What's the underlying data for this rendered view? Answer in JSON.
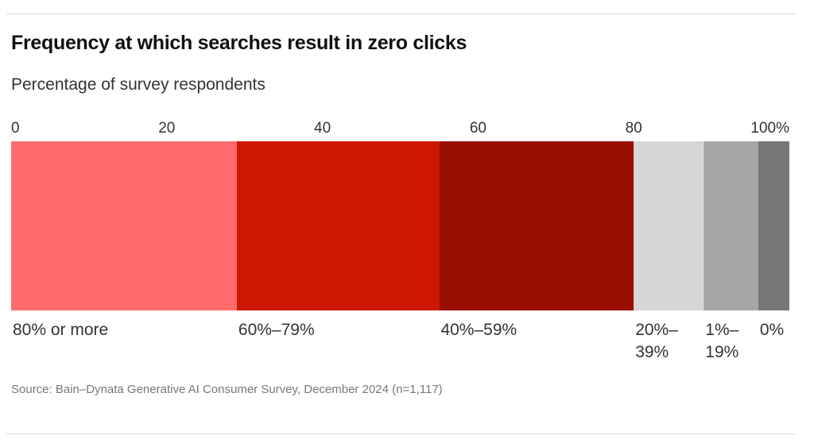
{
  "chart_data": {
    "type": "bar",
    "orientation": "horizontal-stacked-100",
    "title": "Frequency at which searches result in zero clicks",
    "subtitle": "Percentage of survey respondents",
    "xlim": [
      0,
      100
    ],
    "x_ticks": [
      "0",
      "20",
      "40",
      "60",
      "80",
      "100%"
    ],
    "x_tick_values": [
      0,
      20,
      40,
      60,
      80,
      100
    ],
    "series": [
      {
        "name": "80% or more",
        "label_lines": [
          "80% or more"
        ],
        "value": 29,
        "color": "#ff6b6b"
      },
      {
        "name": "60%–79%",
        "label_lines": [
          "60%–79%"
        ],
        "value": 26,
        "color": "#cc1800"
      },
      {
        "name": "40%–59%",
        "label_lines": [
          "40%–59%"
        ],
        "value": 25,
        "color": "#990f00"
      },
      {
        "name": "20%–39%",
        "label_lines": [
          "20%–",
          "39%"
        ],
        "value": 9,
        "color": "#d6d6d4"
      },
      {
        "name": "1%–19%",
        "label_lines": [
          "1%–",
          "19%"
        ],
        "value": 7,
        "color": "#a6a6a4"
      },
      {
        "name": "0%",
        "label_lines": [
          "0%"
        ],
        "value": 4,
        "color": "#777776"
      }
    ],
    "source": "Source: Bain–Dynata Generative AI Consumer Survey, December 2024 (n=1,117)"
  }
}
